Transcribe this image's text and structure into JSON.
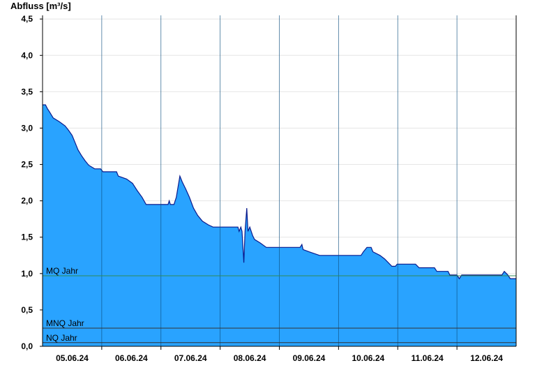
{
  "chart_data": {
    "type": "area",
    "ylabel": "Abfluss [m³/s]",
    "ylim": [
      0,
      4.55
    ],
    "y_ticks": [
      {
        "value": 0,
        "label": "0,0"
      },
      {
        "value": 0.5,
        "label": "0,5"
      },
      {
        "value": 1.0,
        "label": "1,0"
      },
      {
        "value": 1.5,
        "label": "1,5"
      },
      {
        "value": 2.0,
        "label": "2,0"
      },
      {
        "value": 2.5,
        "label": "2,5"
      },
      {
        "value": 3.0,
        "label": "3,0"
      },
      {
        "value": 3.5,
        "label": "3,5"
      },
      {
        "value": 4.0,
        "label": "4,0"
      },
      {
        "value": 4.5,
        "label": "4,5"
      }
    ],
    "xlim": [
      0,
      8
    ],
    "x_ticks": [
      {
        "value": 0.5,
        "label": "05.06.24"
      },
      {
        "value": 1.5,
        "label": "06.06.24"
      },
      {
        "value": 2.5,
        "label": "07.06.24"
      },
      {
        "value": 3.5,
        "label": "08.06.24"
      },
      {
        "value": 4.5,
        "label": "09.06.24"
      },
      {
        "value": 5.5,
        "label": "10.06.24"
      },
      {
        "value": 6.5,
        "label": "11.06.24"
      },
      {
        "value": 7.5,
        "label": "12.06.24"
      }
    ],
    "day_boundaries": [
      1,
      2,
      3,
      4,
      5,
      6,
      7
    ],
    "grid": true,
    "reference_lines": [
      {
        "label": "MQ Jahr",
        "value": 0.97,
        "color": "#2e8b57"
      },
      {
        "label": "MNQ Jahr",
        "value": 0.25,
        "color": "#333333"
      },
      {
        "label": "NQ Jahr",
        "value": 0.05,
        "color": "#333333"
      }
    ],
    "series": [
      {
        "color": "#29a3ff",
        "points": [
          [
            0.0,
            3.32
          ],
          [
            0.05,
            3.32
          ],
          [
            0.08,
            3.27
          ],
          [
            0.12,
            3.22
          ],
          [
            0.18,
            3.14
          ],
          [
            0.28,
            3.09
          ],
          [
            0.38,
            3.03
          ],
          [
            0.44,
            2.97
          ],
          [
            0.5,
            2.9
          ],
          [
            0.55,
            2.8
          ],
          [
            0.6,
            2.7
          ],
          [
            0.66,
            2.62
          ],
          [
            0.72,
            2.55
          ],
          [
            0.78,
            2.49
          ],
          [
            0.88,
            2.44
          ],
          [
            0.98,
            2.44
          ],
          [
            1.02,
            2.4
          ],
          [
            1.25,
            2.4
          ],
          [
            1.28,
            2.34
          ],
          [
            1.42,
            2.3
          ],
          [
            1.52,
            2.24
          ],
          [
            1.6,
            2.14
          ],
          [
            1.68,
            2.05
          ],
          [
            1.75,
            1.95
          ],
          [
            1.95,
            1.95
          ],
          [
            2.0,
            1.95
          ],
          [
            2.12,
            1.95
          ],
          [
            2.14,
            2.0
          ],
          [
            2.16,
            1.95
          ],
          [
            2.22,
            1.95
          ],
          [
            2.26,
            2.05
          ],
          [
            2.29,
            2.2
          ],
          [
            2.32,
            2.34
          ],
          [
            2.36,
            2.26
          ],
          [
            2.42,
            2.16
          ],
          [
            2.48,
            2.05
          ],
          [
            2.55,
            1.9
          ],
          [
            2.62,
            1.8
          ],
          [
            2.7,
            1.72
          ],
          [
            2.8,
            1.67
          ],
          [
            2.88,
            1.64
          ],
          [
            2.98,
            1.64
          ],
          [
            3.0,
            1.64
          ],
          [
            3.1,
            1.64
          ],
          [
            3.3,
            1.64
          ],
          [
            3.32,
            1.58
          ],
          [
            3.35,
            1.64
          ],
          [
            3.37,
            1.58
          ],
          [
            3.4,
            1.15
          ],
          [
            3.42,
            1.58
          ],
          [
            3.45,
            1.9
          ],
          [
            3.47,
            1.58
          ],
          [
            3.5,
            1.64
          ],
          [
            3.55,
            1.52
          ],
          [
            3.58,
            1.47
          ],
          [
            3.68,
            1.42
          ],
          [
            3.78,
            1.36
          ],
          [
            3.98,
            1.36
          ],
          [
            4.0,
            1.36
          ],
          [
            4.3,
            1.36
          ],
          [
            4.35,
            1.36
          ],
          [
            4.38,
            1.4
          ],
          [
            4.4,
            1.33
          ],
          [
            4.5,
            1.3
          ],
          [
            4.68,
            1.25
          ],
          [
            4.98,
            1.25
          ],
          [
            5.0,
            1.25
          ],
          [
            5.38,
            1.25
          ],
          [
            5.42,
            1.3
          ],
          [
            5.48,
            1.36
          ],
          [
            5.55,
            1.36
          ],
          [
            5.58,
            1.3
          ],
          [
            5.7,
            1.25
          ],
          [
            5.78,
            1.2
          ],
          [
            5.84,
            1.15
          ],
          [
            5.9,
            1.1
          ],
          [
            5.96,
            1.1
          ],
          [
            5.99,
            1.13
          ],
          [
            6.0,
            1.13
          ],
          [
            6.3,
            1.13
          ],
          [
            6.36,
            1.08
          ],
          [
            6.62,
            1.08
          ],
          [
            6.66,
            1.03
          ],
          [
            6.85,
            1.03
          ],
          [
            6.88,
            0.98
          ],
          [
            7.0,
            0.98
          ],
          [
            7.04,
            0.93
          ],
          [
            7.08,
            0.98
          ],
          [
            7.76,
            0.98
          ],
          [
            7.8,
            1.03
          ],
          [
            7.86,
            0.98
          ],
          [
            7.9,
            0.93
          ],
          [
            8.0,
            0.93
          ]
        ]
      }
    ]
  }
}
